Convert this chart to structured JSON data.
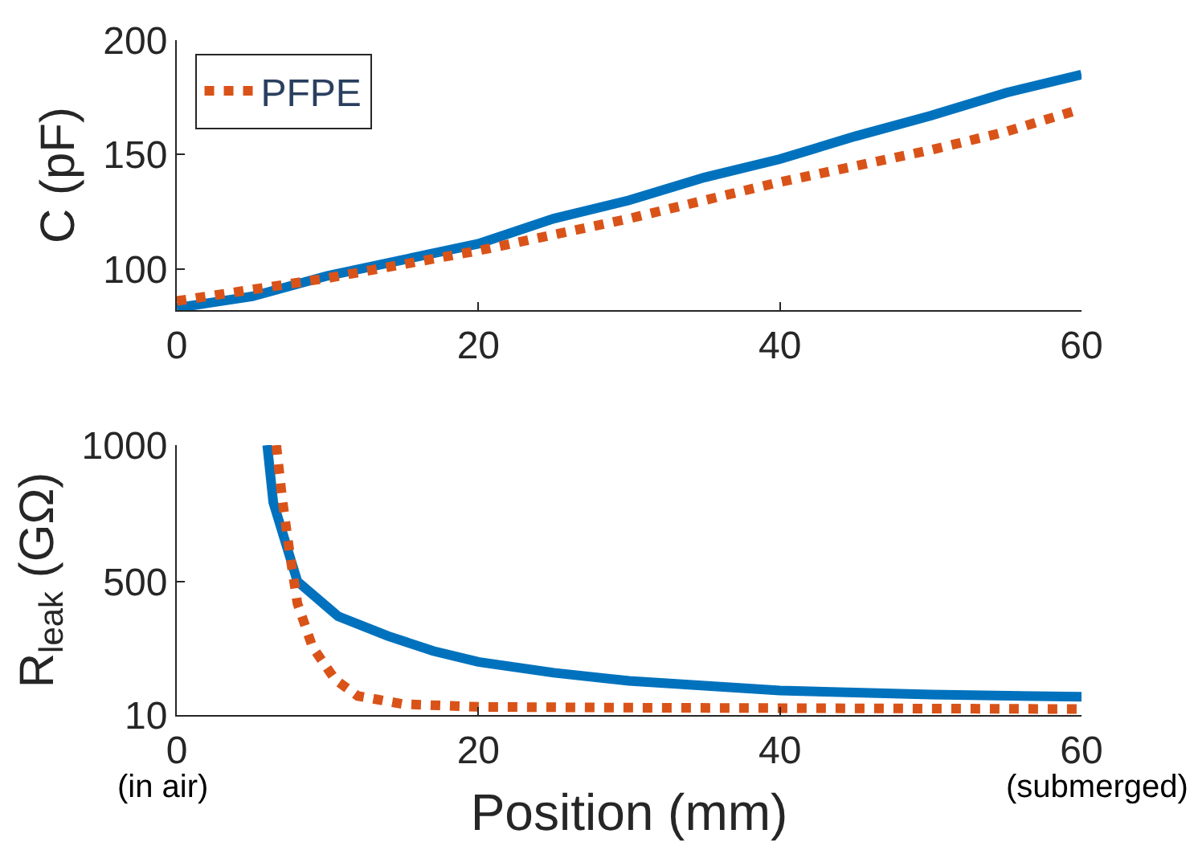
{
  "chart_data": [
    {
      "type": "line",
      "ylabel": "C (pF)",
      "x": [
        0,
        5,
        10,
        15,
        20,
        25,
        30,
        35,
        40,
        45,
        50,
        55,
        60
      ],
      "xlim": [
        0,
        60
      ],
      "xticks": [
        0,
        20,
        40,
        60
      ],
      "ylim": [
        82,
        200
      ],
      "yticks": [
        100,
        150,
        200
      ],
      "legend": "top left",
      "series": [
        {
          "color": "#0072bd",
          "line_style": "solid",
          "values": [
            83,
            88,
            97,
            104,
            111,
            122,
            130,
            140,
            148,
            158,
            167,
            177,
            185
          ]
        },
        {
          "name": "PFPE",
          "color": "#d95319",
          "line_style": "dotted",
          "values": [
            86,
            91,
            96,
            102,
            108,
            115,
            122,
            130,
            138,
            145,
            152,
            160,
            170
          ]
        }
      ]
    },
    {
      "type": "line",
      "ylabel": "R$_{leak}$ (GΩ)",
      "xlabel": "Position (mm)",
      "xlim": [
        0,
        60
      ],
      "xticks": [
        0,
        20,
        40,
        60
      ],
      "ylim": [
        10,
        1000
      ],
      "yticks": [
        10,
        500,
        1000
      ],
      "legend": false,
      "annotations": [
        "(in air)",
        "(submerged)"
      ],
      "series": [
        {
          "color": "#0072bd",
          "line_style": "solid",
          "x": [
            6,
            6.4,
            8,
            10.7,
            14,
            17,
            20,
            25,
            30,
            40,
            50,
            60
          ],
          "values": [
            1000,
            790,
            500,
            372,
            300,
            245,
            205,
            165,
            135,
            100,
            85,
            77
          ]
        },
        {
          "color": "#d95319",
          "line_style": "dotted",
          "x": [
            6.6,
            7,
            7.5,
            8,
            9,
            10.5,
            12,
            15,
            20,
            30,
            60
          ],
          "values": [
            1000,
            800,
            600,
            420,
            260,
            140,
            80,
            50,
            40,
            37,
            32
          ]
        }
      ]
    }
  ]
}
